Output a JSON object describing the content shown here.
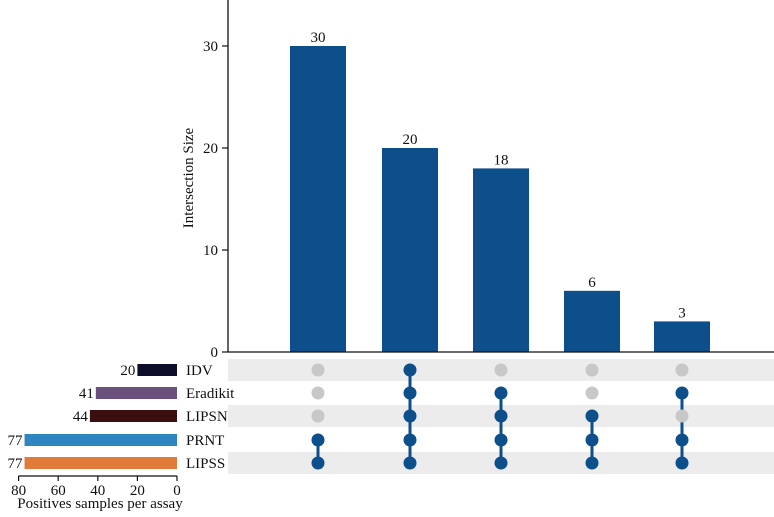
{
  "chart_data": {
    "type": "bar",
    "subtype": "upset",
    "title": "",
    "ylabel": "Intersection Size",
    "ylim": [
      0,
      35
    ],
    "yticks": [
      0,
      10,
      20,
      30
    ],
    "bar_color": "#0d4f8b",
    "intersections": [
      {
        "value": 30,
        "sets": [
          "PRNT",
          "LIPSS"
        ]
      },
      {
        "value": 20,
        "sets": [
          "IDV",
          "Eradikit",
          "LIPSN",
          "PRNT",
          "LIPSS"
        ]
      },
      {
        "value": 18,
        "sets": [
          "Eradikit",
          "LIPSN",
          "PRNT",
          "LIPSS"
        ]
      },
      {
        "value": 6,
        "sets": [
          "LIPSN",
          "PRNT",
          "LIPSS"
        ]
      },
      {
        "value": 3,
        "sets": [
          "Eradikit",
          "PRNT",
          "LIPSS"
        ]
      }
    ],
    "sets": [
      {
        "name": "IDV",
        "size": 20,
        "color": "#0e0e2a"
      },
      {
        "name": "Eradikit",
        "size": 41,
        "color": "#6b4f7c"
      },
      {
        "name": "LIPSN",
        "size": 44,
        "color": "#3b0f0f"
      },
      {
        "name": "PRNT",
        "size": 77,
        "color": "#2e86c1"
      },
      {
        "name": "LIPSS",
        "size": 77,
        "color": "#e07b39"
      }
    ],
    "set_size_axis": {
      "label": "Positives samples per assay",
      "ticks": [
        80,
        60,
        40,
        20,
        0
      ],
      "range": [
        0,
        80
      ]
    },
    "matrix_colors": {
      "active": "#0d4f8b",
      "inactive": "#c8c8c8",
      "stripe": "#ececec"
    }
  }
}
